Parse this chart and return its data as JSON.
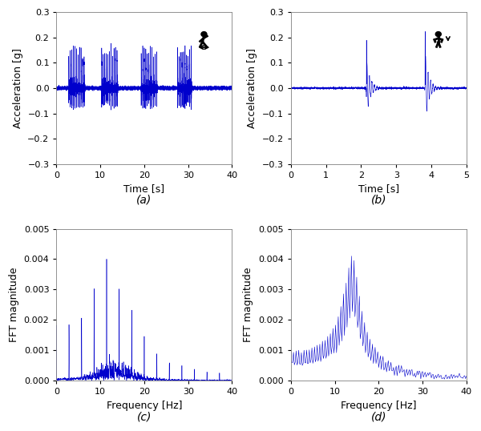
{
  "line_color": "#0000CC",
  "line_width": 0.4,
  "background_color": "#ffffff",
  "ax_facecolor": "#ffffff",
  "fig_size": [
    6.0,
    5.38
  ],
  "dpi": 100,
  "panel_labels": [
    "(a)",
    "(b)",
    "(c)",
    "(d)"
  ],
  "panel_label_fontsize": 10,
  "axis_label_fontsize": 9,
  "tick_fontsize": 8,
  "ax_a": {
    "xlabel": "Time [s]",
    "ylabel": "Acceleration [g]",
    "xlim": [
      0,
      40
    ],
    "ylim": [
      -0.3,
      0.3
    ],
    "yticks": [
      -0.3,
      -0.2,
      -0.1,
      0,
      0.1,
      0.2,
      0.3
    ],
    "xticks": [
      0,
      10,
      20,
      30,
      40
    ]
  },
  "ax_b": {
    "xlabel": "Time [s]",
    "ylabel": "Acceleration [g]",
    "xlim": [
      0,
      5
    ],
    "ylim": [
      -0.3,
      0.3
    ],
    "yticks": [
      -0.3,
      -0.2,
      -0.1,
      0,
      0.1,
      0.2,
      0.3
    ],
    "xticks": [
      0,
      1,
      2,
      3,
      4,
      5
    ]
  },
  "ax_c": {
    "xlabel": "Frequency [Hz]",
    "ylabel": "FFT magnitude",
    "xlim": [
      0,
      40
    ],
    "ylim": [
      0,
      0.005
    ],
    "yticks": [
      0,
      0.001,
      0.002,
      0.003,
      0.004,
      0.005
    ],
    "xticks": [
      0,
      10,
      20,
      30,
      40
    ]
  },
  "ax_d": {
    "xlabel": "Frequency [Hz]",
    "ylabel": "FFT magnitude",
    "xlim": [
      0,
      40
    ],
    "ylim": [
      0,
      0.005
    ],
    "yticks": [
      0,
      0.001,
      0.002,
      0.003,
      0.004,
      0.005
    ],
    "xticks": [
      0,
      10,
      20,
      30,
      40
    ]
  }
}
